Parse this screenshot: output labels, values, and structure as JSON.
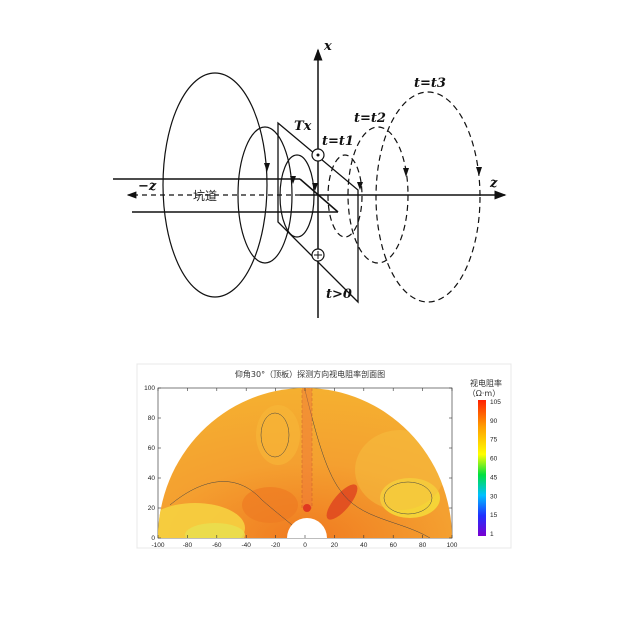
{
  "diagram": {
    "labels": {
      "x_axis": "x",
      "z_axis": "z",
      "neg_z_axis": "−z",
      "tunnel": "坑道",
      "transmitter": "Tx",
      "t1": "t=t1",
      "t2": "t=t2",
      "t3": "t=t3",
      "t_pos": "t>0"
    }
  },
  "chart_data": {
    "type": "heatmap",
    "title": "仰角30°（顶板）探测方向视电阻率剖面图",
    "shape": "semicircle",
    "x_ticks": [
      "-100",
      "-80",
      "-60",
      "-40",
      "-20",
      "0",
      "20",
      "40",
      "60",
      "80",
      "100"
    ],
    "y_ticks": [
      "0",
      "20",
      "40",
      "60",
      "80",
      "100"
    ],
    "xlim": [
      -100,
      100
    ],
    "ylim": [
      0,
      100
    ],
    "colorbar": {
      "title": "视电阻率",
      "unit": "（Ω·m）",
      "ticks": [
        "105",
        "90",
        "75",
        "60",
        "45",
        "30",
        "15",
        "1"
      ],
      "range": [
        1,
        105
      ],
      "colors": [
        "#7a00d0",
        "#2030ff",
        "#00c0ff",
        "#00e040",
        "#ffff00",
        "#ffa000",
        "#ff2000"
      ]
    },
    "dominant_color": "#f5a020"
  }
}
